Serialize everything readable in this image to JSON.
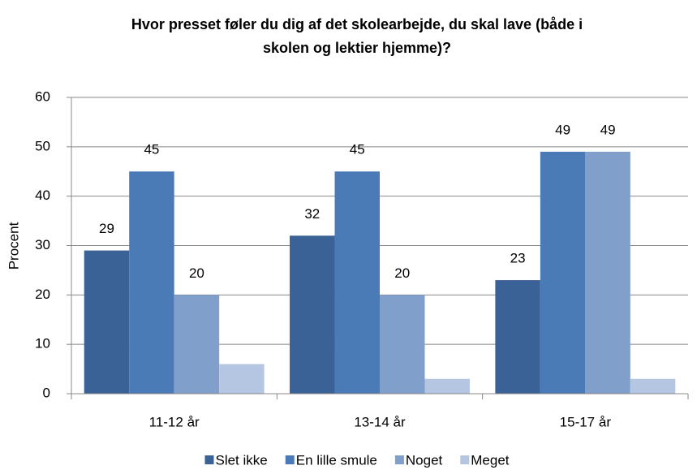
{
  "chart_data": {
    "type": "bar",
    "title": [
      "Hvor presset føler du dig af det skolearbejde, du skal lave (både i",
      "skolen og lektier hjemme)?"
    ],
    "y_label": "Procent",
    "categories": [
      "11-12 år",
      "13-14 år",
      "15-17 år"
    ],
    "series": [
      {
        "name": "Slet ikke",
        "color": "#3b6296",
        "values": [
          29,
          32,
          23
        ],
        "data_labels": true
      },
      {
        "name": "En lille smule",
        "color": "#4a7bb7",
        "values": [
          45,
          45,
          49
        ],
        "data_labels": true
      },
      {
        "name": "Noget",
        "color": "#809fcb",
        "values": [
          20,
          20,
          49
        ],
        "data_labels": true
      },
      {
        "name": "Meget",
        "color": "#b5c6e2",
        "values": [
          6,
          3,
          3
        ],
        "data_labels": false
      }
    ],
    "ylim": [
      0,
      60
    ],
    "yticks": [
      0,
      10,
      20,
      30,
      40,
      50,
      60
    ],
    "grid": true,
    "legend": "bottom"
  }
}
